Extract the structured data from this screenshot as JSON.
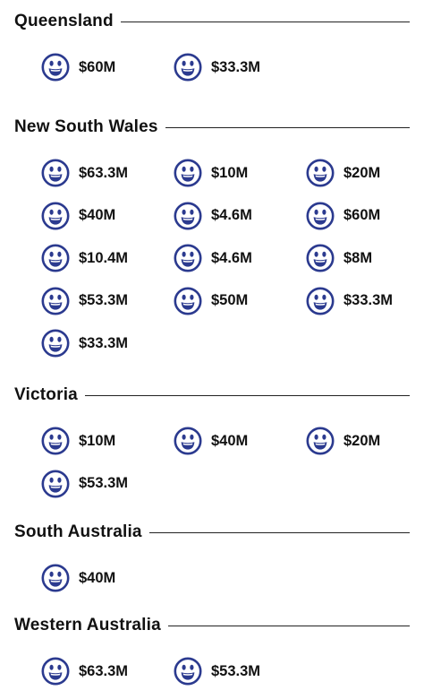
{
  "theme": {
    "face_color": "#2b3a8f",
    "rule_color": "#222222"
  },
  "icon": "smiling-face-icon",
  "regions": [
    {
      "name": "Queensland",
      "amounts": [
        "$60M",
        "$33.3M"
      ]
    },
    {
      "name": "New South Wales",
      "amounts": [
        "$63.3M",
        "$10M",
        "$20M",
        "$40M",
        "$4.6M",
        "$60M",
        "$10.4M",
        "$4.6M",
        "$8M",
        "$53.3M",
        "$50M",
        "$33.3M",
        "$33.3M"
      ]
    },
    {
      "name": "Victoria",
      "amounts": [
        "$10M",
        "$40M",
        "$20M",
        "$53.3M"
      ]
    },
    {
      "name": "South Australia",
      "amounts": [
        "$40M"
      ]
    },
    {
      "name": "Western Australia",
      "amounts": [
        "$63.3M",
        "$53.3M"
      ]
    }
  ]
}
